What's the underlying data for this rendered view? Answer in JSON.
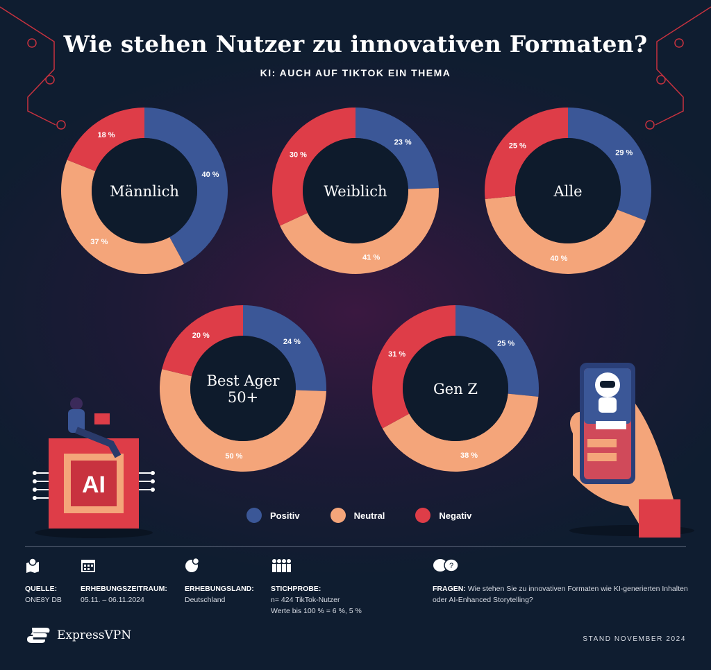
{
  "header": {
    "title": "Wie stehen Nutzer zu innovativen Formaten?",
    "subtitle": "KI: AUCH AUF TIKTOK EIN THEMA"
  },
  "colors": {
    "Positiv": "#3b5797",
    "Neutral": "#f4a57a",
    "Negativ": "#de3d48",
    "hole": "#0e1b2c"
  },
  "chart_data": [
    {
      "type": "pie",
      "title": "Männlich",
      "categories": [
        "Positiv",
        "Neutral",
        "Negativ"
      ],
      "values": [
        40,
        37,
        18
      ],
      "labels": [
        "40 %",
        "37 %",
        "18 %"
      ]
    },
    {
      "type": "pie",
      "title": "Weiblich",
      "categories": [
        "Positiv",
        "Neutral",
        "Negativ"
      ],
      "values": [
        23,
        41,
        30
      ],
      "labels": [
        "23 %",
        "41 %",
        "30 %"
      ]
    },
    {
      "type": "pie",
      "title": "Alle",
      "categories": [
        "Positiv",
        "Neutral",
        "Negativ"
      ],
      "values": [
        29,
        40,
        25
      ],
      "labels": [
        "29 %",
        "40 %",
        "25 %"
      ]
    },
    {
      "type": "pie",
      "title": "Best Ager 50+",
      "title_lines": [
        "Best Ager",
        "50+"
      ],
      "categories": [
        "Positiv",
        "Neutral",
        "Negativ"
      ],
      "values": [
        24,
        50,
        20
      ],
      "labels": [
        "24 %",
        "50 %",
        "20 %"
      ]
    },
    {
      "type": "pie",
      "title": "Gen Z",
      "categories": [
        "Positiv",
        "Neutral",
        "Negativ"
      ],
      "values": [
        25,
        38,
        31
      ],
      "labels": [
        "25 %",
        "38 %",
        "31 %"
      ]
    }
  ],
  "legend": [
    "Positiv",
    "Neutral",
    "Negativ"
  ],
  "illustration": {
    "chip_label": "AI"
  },
  "footer": {
    "source_label": "QUELLE:",
    "source": "ONE8Y DB",
    "period_label": "ERHEBUNGSZEITRAUM:",
    "period": "05.11. – 06.11.2024",
    "country_label": "ERHEBUNGSLAND:",
    "country": "Deutschland",
    "sample_label": "STICHPROBE:",
    "sample": "n= 424 TikTok-Nutzer",
    "sample_note": "Werte bis 100 % = 6 %, 5 %",
    "question_label": "FRAGEN:",
    "question": "Wie stehen Sie zu innovativen Formaten wie KI-generierten Inhalten oder AI-Enhanced Storytelling?",
    "stand": "STAND NOVEMBER 2024",
    "brand": "ExpressVPN"
  }
}
